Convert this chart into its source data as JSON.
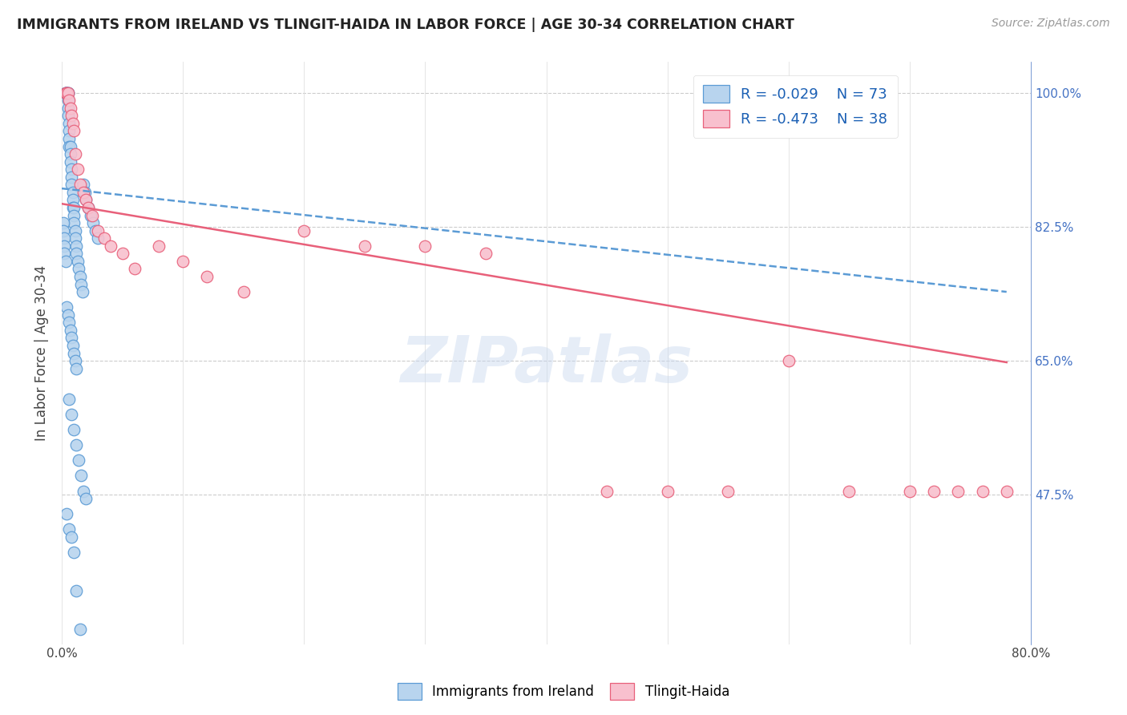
{
  "title": "IMMIGRANTS FROM IRELAND VS TLINGIT-HAIDA IN LABOR FORCE | AGE 30-34 CORRELATION CHART",
  "source": "Source: ZipAtlas.com",
  "ylabel": "In Labor Force | Age 30-34",
  "xlim": [
    0.0,
    0.8
  ],
  "ylim": [
    0.28,
    1.04
  ],
  "x_ticks": [
    0.0,
    0.1,
    0.2,
    0.3,
    0.4,
    0.5,
    0.6,
    0.7,
    0.8
  ],
  "y_ticks": [
    0.475,
    0.65,
    0.825,
    1.0
  ],
  "y_tick_labels": [
    "47.5%",
    "65.0%",
    "82.5%",
    "100.0%"
  ],
  "legend_r1": "-0.029",
  "legend_n1": "73",
  "legend_r2": "-0.473",
  "legend_n2": "38",
  "color_ireland_fill": "#b8d4ee",
  "color_ireland_edge": "#5b9bd5",
  "color_tlingit_fill": "#f8c0ce",
  "color_tlingit_edge": "#e8607a",
  "color_ireland_line": "#5b9bd5",
  "color_tlingit_line": "#e8607a",
  "watermark": "ZIPatlas",
  "ireland_x": [
    0.003,
    0.003,
    0.003,
    0.004,
    0.004,
    0.004,
    0.005,
    0.005,
    0.005,
    0.005,
    0.005,
    0.006,
    0.006,
    0.006,
    0.006,
    0.007,
    0.007,
    0.007,
    0.008,
    0.008,
    0.008,
    0.009,
    0.009,
    0.009,
    0.01,
    0.01,
    0.01,
    0.011,
    0.011,
    0.012,
    0.012,
    0.013,
    0.014,
    0.015,
    0.016,
    0.017,
    0.018,
    0.019,
    0.02,
    0.022,
    0.024,
    0.026,
    0.028,
    0.03,
    0.001,
    0.001,
    0.002,
    0.002,
    0.002,
    0.003,
    0.004,
    0.005,
    0.006,
    0.007,
    0.008,
    0.009,
    0.01,
    0.011,
    0.012,
    0.006,
    0.008,
    0.01,
    0.012,
    0.014,
    0.016,
    0.018,
    0.02,
    0.004,
    0.006,
    0.008,
    0.01,
    0.012,
    0.015
  ],
  "ireland_y": [
    1.0,
    1.0,
    1.0,
    1.0,
    1.0,
    1.0,
    1.0,
    1.0,
    0.99,
    0.98,
    0.97,
    0.96,
    0.95,
    0.94,
    0.93,
    0.93,
    0.92,
    0.91,
    0.9,
    0.89,
    0.88,
    0.87,
    0.86,
    0.85,
    0.85,
    0.84,
    0.83,
    0.82,
    0.81,
    0.8,
    0.79,
    0.78,
    0.77,
    0.76,
    0.75,
    0.74,
    0.88,
    0.87,
    0.86,
    0.85,
    0.84,
    0.83,
    0.82,
    0.81,
    0.83,
    0.82,
    0.81,
    0.8,
    0.79,
    0.78,
    0.72,
    0.71,
    0.7,
    0.69,
    0.68,
    0.67,
    0.66,
    0.65,
    0.64,
    0.6,
    0.58,
    0.56,
    0.54,
    0.52,
    0.5,
    0.48,
    0.47,
    0.45,
    0.43,
    0.42,
    0.4,
    0.35,
    0.3
  ],
  "tlingit_x": [
    0.003,
    0.004,
    0.005,
    0.006,
    0.007,
    0.008,
    0.009,
    0.01,
    0.011,
    0.013,
    0.015,
    0.018,
    0.02,
    0.022,
    0.025,
    0.03,
    0.035,
    0.04,
    0.05,
    0.06,
    0.08,
    0.1,
    0.12,
    0.15,
    0.2,
    0.25,
    0.3,
    0.35,
    0.45,
    0.5,
    0.55,
    0.6,
    0.65,
    0.7,
    0.72,
    0.74,
    0.76,
    0.78
  ],
  "tlingit_y": [
    1.0,
    1.0,
    1.0,
    0.99,
    0.98,
    0.97,
    0.96,
    0.95,
    0.92,
    0.9,
    0.88,
    0.87,
    0.86,
    0.85,
    0.84,
    0.82,
    0.81,
    0.8,
    0.79,
    0.77,
    0.8,
    0.78,
    0.76,
    0.74,
    0.82,
    0.8,
    0.8,
    0.79,
    0.48,
    0.48,
    0.48,
    0.65,
    0.48,
    0.48,
    0.48,
    0.48,
    0.48,
    0.48
  ],
  "ireland_trend_x": [
    0.0,
    0.78
  ],
  "ireland_trend_y": [
    0.875,
    0.74
  ],
  "tlingit_trend_x": [
    0.0,
    0.78
  ],
  "tlingit_trend_y": [
    0.855,
    0.648
  ]
}
